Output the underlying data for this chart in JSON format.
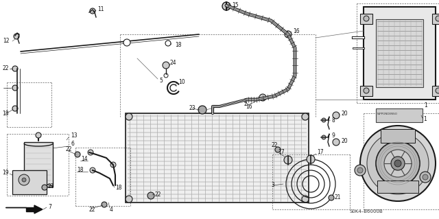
{
  "background_color": "#ffffff",
  "diagram_code": "S0K4–B6000B",
  "fig_width": 6.4,
  "fig_height": 3.19,
  "dpi": 100
}
